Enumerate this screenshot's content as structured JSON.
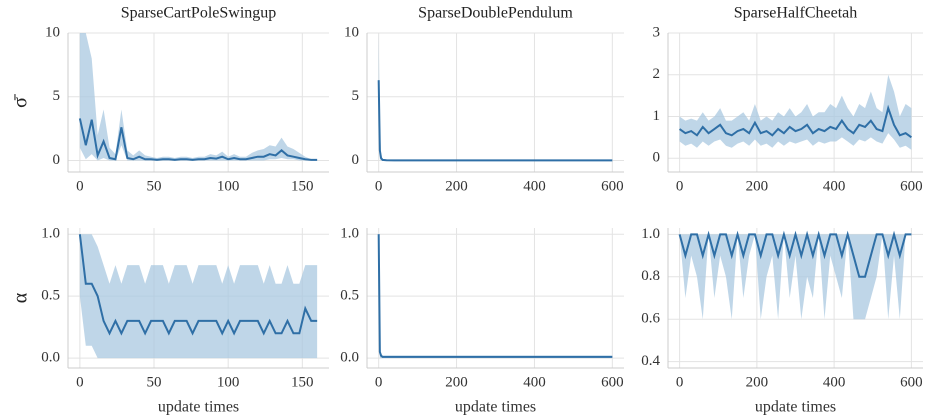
{
  "chart_data": [
    {
      "type": "line",
      "title": "SparseCartPoleSwingup",
      "ylabel": "σ̄",
      "grid": true,
      "xlim": [
        -8,
        168
      ],
      "xticks": [
        0,
        50,
        100,
        150
      ],
      "ylim": [
        -0.9,
        10
      ],
      "yticks": [
        0,
        5,
        10
      ],
      "x": [
        0,
        4,
        8,
        12,
        16,
        20,
        24,
        28,
        32,
        36,
        40,
        44,
        48,
        52,
        56,
        60,
        64,
        68,
        72,
        76,
        80,
        84,
        88,
        92,
        96,
        100,
        104,
        108,
        112,
        116,
        120,
        124,
        128,
        132,
        136,
        140,
        144,
        148,
        152,
        156,
        160
      ],
      "series": [
        {
          "color": "#2f6fa6",
          "band_color": "#a9c8e0",
          "values": [
            3.3,
            1.2,
            3.2,
            0.4,
            1.5,
            0.2,
            0.1,
            2.6,
            0.2,
            0.1,
            0.3,
            0.1,
            0.1,
            0.05,
            0.1,
            0.1,
            0.05,
            0.1,
            0.1,
            0.05,
            0.1,
            0.1,
            0.2,
            0.15,
            0.3,
            0.1,
            0.2,
            0.1,
            0.1,
            0.2,
            0.3,
            0.3,
            0.5,
            0.4,
            0.8,
            0.4,
            0.3,
            0.2,
            0.1,
            0.05,
            0.05
          ],
          "upper": [
            10,
            10,
            8,
            2,
            4,
            1,
            0.5,
            4,
            0.8,
            0.4,
            0.8,
            0.4,
            0.3,
            0.2,
            0.3,
            0.3,
            0.2,
            0.3,
            0.3,
            0.2,
            0.3,
            0.3,
            0.5,
            0.4,
            0.7,
            0.3,
            0.5,
            0.3,
            0.3,
            0.6,
            0.8,
            0.9,
            1.2,
            1.1,
            1.8,
            1.1,
            0.9,
            0.6,
            0.3,
            0.1,
            0.1
          ],
          "lower": [
            1,
            0.1,
            0.5,
            0,
            0.2,
            0,
            0,
            1.2,
            0,
            0,
            0,
            0,
            0,
            0,
            0,
            0,
            0,
            0,
            0,
            0,
            0,
            0,
            0,
            0,
            0,
            0,
            0,
            0,
            0,
            0,
            0,
            0,
            0.1,
            0.1,
            0.2,
            0.1,
            0.1,
            0,
            0,
            0,
            0
          ]
        }
      ]
    },
    {
      "type": "line",
      "title": "SparseDoublePendulum",
      "grid": true,
      "xlim": [
        -30,
        630
      ],
      "xticks": [
        0,
        200,
        400,
        600
      ],
      "ylim": [
        -0.9,
        10
      ],
      "yticks": [
        0,
        5,
        10
      ],
      "x": [
        0,
        3,
        6,
        10,
        20,
        40,
        80,
        120,
        160,
        200,
        240,
        280,
        320,
        360,
        400,
        440,
        480,
        520,
        560,
        600
      ],
      "series": [
        {
          "color": "#2f6fa6",
          "band_color": "#a9c8e0",
          "values": [
            6.3,
            0.8,
            0.2,
            0.05,
            0.02,
            0.01,
            0.01,
            0.01,
            0.01,
            0.01,
            0.01,
            0.01,
            0.01,
            0.01,
            0.01,
            0.01,
            0.01,
            0.01,
            0.01,
            0.01
          ],
          "upper": [
            10,
            3,
            0.6,
            0.1,
            0.05,
            0.02,
            0.02,
            0.02,
            0.02,
            0.02,
            0.02,
            0.02,
            0.02,
            0.02,
            0.02,
            0.02,
            0.02,
            0.02,
            0.02,
            0.02
          ],
          "lower": [
            3,
            0.1,
            0,
            0,
            0,
            0,
            0,
            0,
            0,
            0,
            0,
            0,
            0,
            0,
            0,
            0,
            0,
            0,
            0,
            0
          ]
        }
      ]
    },
    {
      "type": "line",
      "title": "SparseHalfCheetah",
      "grid": true,
      "xlim": [
        -30,
        630
      ],
      "xticks": [
        0,
        200,
        400,
        600
      ],
      "ylim": [
        -0.33,
        3
      ],
      "yticks": [
        0,
        1,
        2,
        3
      ],
      "x": [
        0,
        15,
        30,
        45,
        60,
        75,
        90,
        105,
        120,
        135,
        150,
        165,
        180,
        195,
        210,
        225,
        240,
        255,
        270,
        285,
        300,
        315,
        330,
        345,
        360,
        375,
        390,
        405,
        420,
        435,
        450,
        465,
        480,
        495,
        510,
        525,
        540,
        555,
        570,
        585,
        600
      ],
      "series": [
        {
          "color": "#2f6fa6",
          "band_color": "#a9c8e0",
          "values": [
            0.7,
            0.6,
            0.65,
            0.55,
            0.75,
            0.6,
            0.7,
            0.8,
            0.6,
            0.55,
            0.65,
            0.7,
            0.6,
            0.85,
            0.6,
            0.65,
            0.55,
            0.7,
            0.6,
            0.75,
            0.65,
            0.7,
            0.8,
            0.6,
            0.7,
            0.65,
            0.75,
            0.7,
            0.9,
            0.7,
            0.6,
            0.8,
            0.75,
            0.9,
            0.7,
            0.65,
            1.2,
            0.8,
            0.55,
            0.6,
            0.5
          ],
          "upper": [
            1.0,
            0.9,
            0.95,
            0.9,
            1.1,
            0.9,
            1.0,
            1.2,
            0.9,
            0.9,
            1.0,
            1.1,
            0.9,
            1.3,
            0.9,
            1.0,
            0.9,
            1.1,
            1.0,
            1.2,
            1.0,
            1.1,
            1.3,
            1.0,
            1.1,
            1.1,
            1.3,
            1.2,
            1.5,
            1.2,
            1.0,
            1.3,
            1.2,
            1.6,
            1.2,
            1.1,
            2.0,
            1.6,
            1.0,
            1.3,
            1.2
          ],
          "lower": [
            0.4,
            0.3,
            0.35,
            0.25,
            0.4,
            0.3,
            0.4,
            0.45,
            0.3,
            0.25,
            0.35,
            0.4,
            0.3,
            0.45,
            0.3,
            0.35,
            0.25,
            0.4,
            0.3,
            0.4,
            0.35,
            0.4,
            0.45,
            0.3,
            0.4,
            0.35,
            0.4,
            0.4,
            0.5,
            0.4,
            0.3,
            0.45,
            0.4,
            0.5,
            0.4,
            0.35,
            0.6,
            0.45,
            0.25,
            0.3,
            0.2
          ]
        }
      ]
    },
    {
      "type": "line",
      "ylabel": "α",
      "xlabel": "update times",
      "grid": true,
      "xlim": [
        -8,
        168
      ],
      "xticks": [
        0,
        50,
        100,
        150
      ],
      "ylim": [
        -0.08,
        1.05
      ],
      "yticks": [
        {
          "value": 0,
          "label": "0.0"
        },
        0.5,
        {
          "value": 1,
          "label": "1.0"
        }
      ],
      "x": [
        0,
        4,
        8,
        12,
        16,
        20,
        24,
        28,
        32,
        36,
        40,
        44,
        48,
        52,
        56,
        60,
        64,
        68,
        72,
        76,
        80,
        84,
        88,
        92,
        96,
        100,
        104,
        108,
        112,
        116,
        120,
        124,
        128,
        132,
        136,
        140,
        144,
        148,
        152,
        156,
        160
      ],
      "series": [
        {
          "color": "#2f6fa6",
          "band_color": "#a9c8e0",
          "values": [
            1.0,
            0.6,
            0.6,
            0.5,
            0.3,
            0.2,
            0.3,
            0.2,
            0.3,
            0.3,
            0.3,
            0.2,
            0.3,
            0.3,
            0.3,
            0.2,
            0.3,
            0.3,
            0.3,
            0.2,
            0.3,
            0.3,
            0.3,
            0.3,
            0.2,
            0.3,
            0.2,
            0.3,
            0.3,
            0.3,
            0.3,
            0.2,
            0.3,
            0.2,
            0.2,
            0.3,
            0.2,
            0.2,
            0.4,
            0.3,
            0.3
          ],
          "upper": [
            1.0,
            1.0,
            1.0,
            0.9,
            0.75,
            0.6,
            0.75,
            0.6,
            0.75,
            0.75,
            0.75,
            0.6,
            0.75,
            0.75,
            0.75,
            0.6,
            0.75,
            0.75,
            0.75,
            0.6,
            0.75,
            0.75,
            0.75,
            0.75,
            0.6,
            0.75,
            0.6,
            0.75,
            0.75,
            0.75,
            0.75,
            0.6,
            0.75,
            0.6,
            0.6,
            0.75,
            0.6,
            0.6,
            0.75,
            0.75,
            0.75
          ],
          "lower": [
            0.5,
            0.1,
            0.1,
            0,
            0,
            0,
            0,
            0,
            0,
            0,
            0,
            0,
            0,
            0,
            0,
            0,
            0,
            0,
            0,
            0,
            0,
            0,
            0,
            0,
            0,
            0,
            0,
            0,
            0,
            0,
            0,
            0,
            0,
            0,
            0,
            0,
            0,
            0,
            0,
            0,
            0
          ]
        }
      ]
    },
    {
      "type": "line",
      "xlabel": "update times",
      "grid": true,
      "xlim": [
        -30,
        630
      ],
      "xticks": [
        0,
        200,
        400,
        600
      ],
      "ylim": [
        -0.08,
        1.05
      ],
      "yticks": [
        {
          "value": 0,
          "label": "0.0"
        },
        0.5,
        {
          "value": 1,
          "label": "1.0"
        }
      ],
      "x": [
        0,
        3,
        6,
        10,
        20,
        40,
        80,
        120,
        160,
        200,
        240,
        280,
        320,
        360,
        400,
        440,
        480,
        520,
        560,
        600
      ],
      "series": [
        {
          "color": "#2f6fa6",
          "band_color": "#a9c8e0",
          "values": [
            1.0,
            0.05,
            0.02,
            0.01,
            0.01,
            0.01,
            0.01,
            0.01,
            0.01,
            0.01,
            0.01,
            0.01,
            0.01,
            0.01,
            0.01,
            0.01,
            0.01,
            0.01,
            0.01,
            0.01
          ],
          "upper": [
            1.0,
            0.1,
            0.04,
            0.02,
            0.02,
            0.02,
            0.02,
            0.02,
            0.02,
            0.02,
            0.02,
            0.02,
            0.02,
            0.02,
            0.02,
            0.02,
            0.02,
            0.02,
            0.02,
            0.02
          ],
          "lower": [
            1.0,
            0,
            0,
            0,
            0,
            0,
            0,
            0,
            0,
            0,
            0,
            0,
            0,
            0,
            0,
            0,
            0,
            0,
            0,
            0
          ]
        }
      ]
    },
    {
      "type": "line",
      "xlabel": "update times",
      "grid": true,
      "xlim": [
        -30,
        630
      ],
      "xticks": [
        0,
        200,
        400,
        600
      ],
      "ylim": [
        0.37,
        1.03
      ],
      "yticks": [
        0.4,
        0.6,
        0.8,
        {
          "value": 1,
          "label": "1.0"
        }
      ],
      "x": [
        0,
        15,
        30,
        45,
        60,
        75,
        90,
        105,
        120,
        135,
        150,
        165,
        180,
        195,
        210,
        225,
        240,
        255,
        270,
        285,
        300,
        315,
        330,
        345,
        360,
        375,
        390,
        405,
        420,
        435,
        450,
        465,
        480,
        495,
        510,
        525,
        540,
        555,
        570,
        585,
        600
      ],
      "series": [
        {
          "color": "#2f6fa6",
          "band_color": "#a9c8e0",
          "values": [
            1.0,
            0.9,
            1.0,
            1.0,
            0.9,
            1.0,
            0.9,
            1.0,
            1.0,
            0.9,
            1.0,
            0.9,
            1.0,
            1.0,
            0.9,
            1.0,
            1.0,
            0.9,
            1.0,
            0.9,
            1.0,
            0.9,
            1.0,
            0.9,
            1.0,
            0.9,
            1.0,
            1.0,
            0.9,
            1.0,
            0.9,
            0.8,
            0.8,
            0.9,
            1.0,
            1.0,
            0.9,
            1.0,
            0.9,
            1.0,
            1.0
          ],
          "upper": [
            1,
            1,
            1,
            1,
            1,
            1,
            1,
            1,
            1,
            1,
            1,
            1,
            1,
            1,
            1,
            1,
            1,
            1,
            1,
            1,
            1,
            1,
            1,
            1,
            1,
            1,
            1,
            1,
            1,
            1,
            1,
            1,
            1,
            1,
            1,
            1,
            1,
            1,
            1,
            1,
            1
          ],
          "lower": [
            1.0,
            0.7,
            0.9,
            0.8,
            0.6,
            1.0,
            0.7,
            0.9,
            0.8,
            0.6,
            1.0,
            0.7,
            0.9,
            1.0,
            0.6,
            0.8,
            0.9,
            0.6,
            1.0,
            0.7,
            0.9,
            0.6,
            0.8,
            0.7,
            1.0,
            0.6,
            0.9,
            0.8,
            0.7,
            1.0,
            0.6,
            0.6,
            0.6,
            0.7,
            0.8,
            1.0,
            0.6,
            0.9,
            0.6,
            1.0,
            1.0
          ]
        }
      ]
    }
  ]
}
